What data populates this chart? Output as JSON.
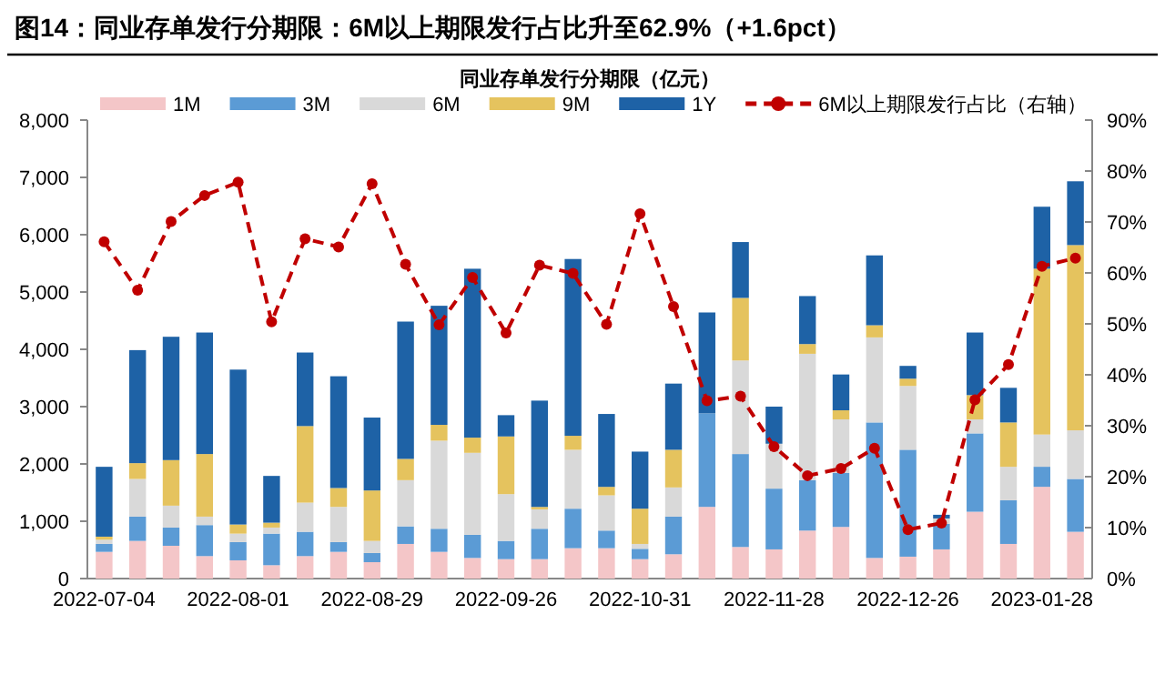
{
  "chart_data": {
    "type": "bar",
    "title": "图14：同业存单发行分期限：6M以上期限发行占比升至62.9%（+1.6pct）",
    "subtitle": "同业存单发行分期限（亿元）",
    "categories": [
      "2022-07-04",
      null,
      null,
      null,
      "2022-08-01",
      null,
      null,
      null,
      "2022-08-29",
      null,
      null,
      null,
      "2022-09-26",
      null,
      null,
      null,
      "2022-10-31",
      null,
      null,
      null,
      "2022-11-28",
      null,
      null,
      null,
      "2022-12-26",
      null,
      null,
      null,
      "2023-01-28",
      null
    ],
    "stacked": true,
    "series": [
      {
        "name": "1M",
        "color": "#f4c6c8",
        "values": [
          466,
          657,
          572,
          392,
          318,
          233,
          392,
          466,
          286,
          604,
          466,
          360,
          339,
          339,
          530,
          530,
          339,
          424,
          1251,
          551,
          509,
          837,
          901,
          360,
          382,
          509,
          1166,
          604,
          1601,
          816
        ]
      },
      {
        "name": "3M",
        "color": "#5b9bd5",
        "values": [
          138,
          424,
          318,
          541,
          318,
          551,
          424,
          170,
          159,
          307,
          403,
          403,
          318,
          530,
          689,
          307,
          180,
          657,
          1632,
          1622,
          1060,
          880,
          943,
          2364,
          1866,
          445,
          1367,
          763,
          350,
          922
        ]
      },
      {
        "name": "6M",
        "color": "#d9d9d9",
        "values": [
          74,
          657,
          382,
          148,
          148,
          106,
          509,
          615,
          212,
          806,
          1537,
          1431,
          816,
          339,
          1028,
          615,
          85,
          509,
          0,
          1632,
          784,
          2205,
          933,
          1484,
          1113,
          95,
          244,
          583,
          562,
          848
        ]
      },
      {
        "name": "9M",
        "color": "#e5c35e",
        "values": [
          53,
          276,
          795,
          1092,
          159,
          85,
          1336,
          329,
          880,
          371,
          276,
          265,
          1007,
          42,
          244,
          148,
          615,
          657,
          0,
          1092,
          0,
          170,
          159,
          212,
          127,
          0,
          424,
          774,
          2894,
          3233
        ]
      },
      {
        "name": "1Y",
        "color": "#1e62a6",
        "values": [
          1219,
          1972,
          2152,
          2120,
          2703,
          816,
          1283,
          1950,
          1272,
          2396,
          2078,
          2947,
          371,
          1855,
          3085,
          1272,
          996,
          1155,
          1760,
          975,
          647,
          837,
          625,
          1219,
          223,
          64,
          1092,
          604,
          1081,
          1113
        ]
      },
      {
        "name": "6M以上期限发行占比（右轴）",
        "type": "line",
        "axis": "y2",
        "color": "#c00000",
        "marker": "circle",
        "line_style": "dashed",
        "values": [
          66.1,
          56.6,
          70.1,
          75.2,
          77.8,
          50.4,
          66.7,
          65.1,
          77.5,
          61.7,
          49.8,
          59.1,
          48.2,
          61.5,
          59.9,
          49.9,
          71.6,
          53.4,
          34.9,
          35.8,
          25.9,
          20.2,
          21.6,
          25.6,
          9.6,
          10.9,
          35.1,
          42.0,
          61.3,
          62.9
        ]
      }
    ],
    "ylim": [
      0,
      8000
    ],
    "yticks": [
      0,
      {
        "value": 1000,
        "label": "1,000"
      },
      {
        "value": 2000,
        "label": "2,000"
      },
      {
        "value": 3000,
        "label": "3,000"
      },
      {
        "value": 4000,
        "label": "4,000"
      },
      {
        "value": 5000,
        "label": "5,000"
      },
      {
        "value": 6000,
        "label": "6,000"
      },
      {
        "value": 7000,
        "label": "7,000"
      },
      {
        "value": 8000,
        "label": "8,000"
      }
    ],
    "y2lim": [
      0,
      90
    ],
    "y2ticks": [
      {
        "value": 0,
        "label": "0%"
      },
      {
        "value": 10,
        "label": "10%"
      },
      {
        "value": 20,
        "label": "20%"
      },
      {
        "value": 30,
        "label": "30%"
      },
      {
        "value": 40,
        "label": "40%"
      },
      {
        "value": 50,
        "label": "50%"
      },
      {
        "value": 60,
        "label": "60%"
      },
      {
        "value": 70,
        "label": "70%"
      },
      {
        "value": 80,
        "label": "80%"
      },
      {
        "value": 90,
        "label": "90%"
      }
    ],
    "legend": "top"
  }
}
